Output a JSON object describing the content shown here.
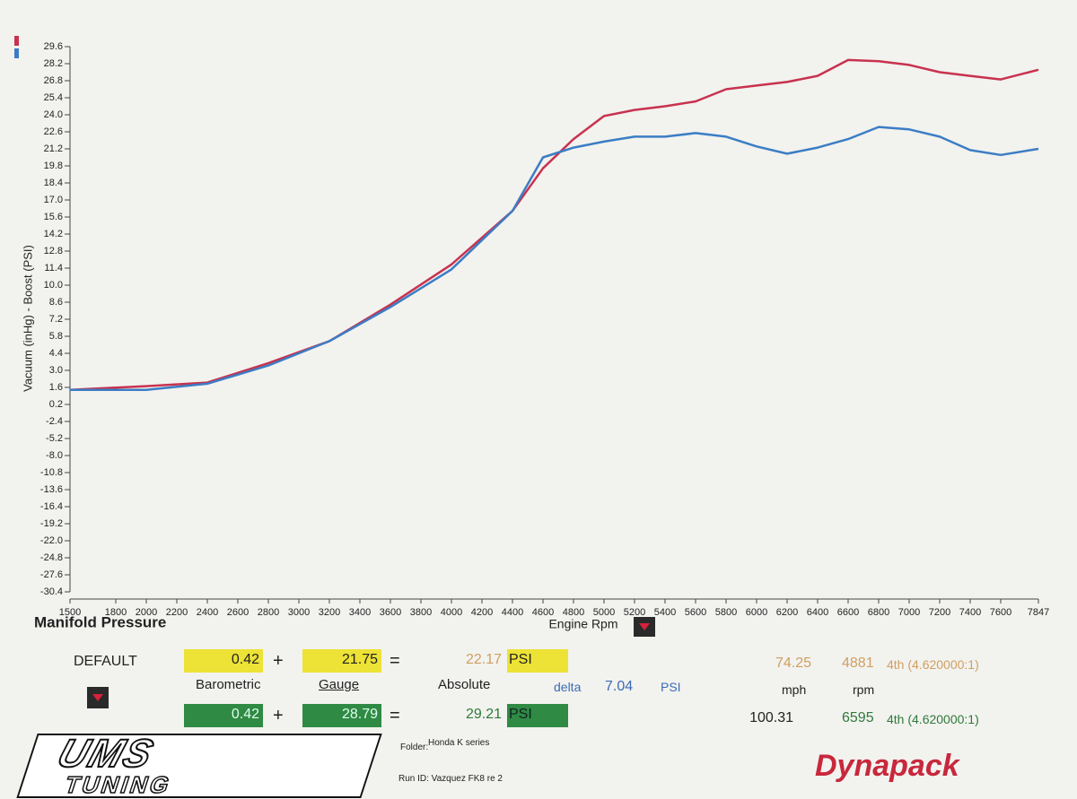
{
  "chart_data": {
    "type": "line",
    "title": "Manifold Pressure",
    "x_label": "Engine Rpm",
    "y_label": "Vacuum (inHg) - Boost (PSI)",
    "x": [
      1500,
      2000,
      2400,
      2800,
      3200,
      3600,
      4000,
      4400,
      4600,
      4800,
      5000,
      5200,
      5400,
      5600,
      5800,
      6000,
      6200,
      6400,
      6600,
      6800,
      7000,
      7200,
      7400,
      7600,
      7847
    ],
    "series": [
      {
        "color": "#c8324e",
        "values": [
          1.4,
          1.7,
          2.0,
          3.6,
          5.4,
          8.4,
          11.7,
          16.1,
          19.6,
          22.0,
          23.9,
          24.4,
          24.7,
          25.1,
          26.1,
          26.4,
          26.7,
          27.2,
          28.5,
          28.4,
          28.1,
          27.5,
          27.2,
          26.9,
          27.7
        ]
      },
      {
        "color": "#3b7dc4",
        "values": [
          1.4,
          1.4,
          1.9,
          3.4,
          5.4,
          8.2,
          11.3,
          16.1,
          20.5,
          21.3,
          21.8,
          22.2,
          22.2,
          22.5,
          22.2,
          21.4,
          20.8,
          21.3,
          22.0,
          23.0,
          22.8,
          22.2,
          21.1,
          20.7,
          21.2
        ]
      }
    ],
    "xlim": [
      1500,
      7847
    ],
    "xticks": [
      1500,
      1800,
      2000,
      2200,
      2400,
      2600,
      2800,
      3000,
      3200,
      3400,
      3600,
      3800,
      4000,
      4200,
      4400,
      4600,
      4800,
      5000,
      5200,
      5400,
      5600,
      5800,
      6000,
      6200,
      6400,
      6600,
      6800,
      7000,
      7200,
      7400,
      7600,
      7847
    ],
    "ylim": [
      -30.4,
      29.6
    ],
    "yticks": [
      29.6,
      28.2,
      26.8,
      25.4,
      {
        "value": 24,
        "label": "24.0"
      },
      22.6,
      21.2,
      19.8,
      18.4,
      {
        "value": 17,
        "label": "17.0"
      },
      15.6,
      14.2,
      12.8,
      11.4,
      {
        "value": 10,
        "label": "10.0"
      },
      8.6,
      7.2,
      5.8,
      4.4,
      {
        "value": 3,
        "label": "3.0"
      },
      1.6,
      0.2,
      -2.4,
      -5.2,
      {
        "value": -8,
        "label": "-8.0"
      },
      -10.8,
      -13.6,
      -16.4,
      -19.2,
      {
        "value": -22,
        "label": "-22.0"
      },
      -24.8,
      -27.6,
      -30.4
    ]
  },
  "panel": {
    "preset": "DEFAULT",
    "plus": "+",
    "equals": "=",
    "labels": {
      "barometric": "Barometric",
      "gauge": "Gauge",
      "absolute": "Absolute",
      "delta": "delta",
      "delta_value": "7.04",
      "delta_unit": "PSI",
      "mph": "mph",
      "rpm": "rpm"
    },
    "row1": {
      "barometric": "0.42",
      "gauge": "21.75",
      "absolute": "22.17",
      "unit": "PSI",
      "mph": "74.25",
      "rpm": "4881",
      "gear": "4th (4.620000:1)"
    },
    "row2": {
      "barometric": "0.42",
      "gauge": "28.79",
      "absolute": "29.21",
      "unit": "PSI",
      "mph": "100.31",
      "rpm": "6595",
      "gear": "4th (4.620000:1)"
    },
    "folder_label": "Folder:",
    "folder": "Honda K series",
    "run_id": "Run ID: Vazquez FK8 re 2",
    "logo_left": [
      "UMS",
      "TUNING"
    ],
    "logo_right": "Dynapack"
  }
}
